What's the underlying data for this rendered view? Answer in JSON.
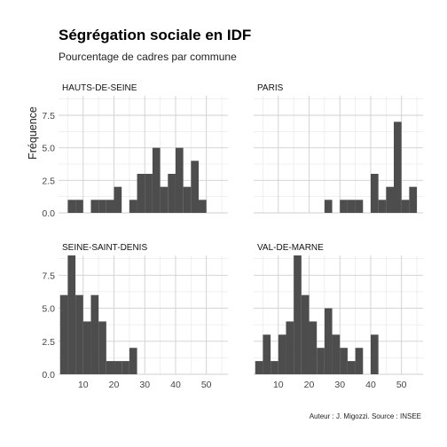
{
  "chart_data": {
    "type": "bar",
    "title": "Ségrégation sociale en IDF",
    "subtitle": "Pourcentage de cadres par commune",
    "ylabel": "Fréquence",
    "xlabel": "",
    "caption": "Auteur : J. Migozzi. Source : INSEE",
    "bin_width": 2.5,
    "xlim": [
      2,
      57
    ],
    "ylim": [
      0,
      9
    ],
    "x_ticks": [
      10,
      20,
      30,
      40,
      50
    ],
    "y_ticks": [
      0.0,
      2.5,
      5.0,
      7.5
    ],
    "y_tick_labels": [
      "0.0",
      "2.5",
      "5.0",
      "7.5"
    ],
    "grid": true,
    "panels": [
      {
        "name": "HAUTS-DE-SEINE",
        "bars": [
          {
            "x": 6.25,
            "count": 1
          },
          {
            "x": 8.75,
            "count": 1
          },
          {
            "x": 13.75,
            "count": 1
          },
          {
            "x": 16.25,
            "count": 1
          },
          {
            "x": 18.75,
            "count": 1
          },
          {
            "x": 21.25,
            "count": 2
          },
          {
            "x": 26.25,
            "count": 1
          },
          {
            "x": 28.75,
            "count": 3
          },
          {
            "x": 31.25,
            "count": 3
          },
          {
            "x": 33.75,
            "count": 5
          },
          {
            "x": 36.25,
            "count": 2
          },
          {
            "x": 38.75,
            "count": 3
          },
          {
            "x": 41.25,
            "count": 5
          },
          {
            "x": 43.75,
            "count": 2
          },
          {
            "x": 46.25,
            "count": 4
          },
          {
            "x": 48.75,
            "count": 1
          }
        ]
      },
      {
        "name": "PARIS",
        "bars": [
          {
            "x": 26.25,
            "count": 1
          },
          {
            "x": 31.25,
            "count": 1
          },
          {
            "x": 33.75,
            "count": 1
          },
          {
            "x": 36.25,
            "count": 1
          },
          {
            "x": 41.25,
            "count": 3
          },
          {
            "x": 43.75,
            "count": 1
          },
          {
            "x": 46.25,
            "count": 2
          },
          {
            "x": 48.75,
            "count": 7
          },
          {
            "x": 51.25,
            "count": 1
          },
          {
            "x": 53.75,
            "count": 2
          }
        ]
      },
      {
        "name": "SEINE-SAINT-DENIS",
        "bars": [
          {
            "x": 3.75,
            "count": 6
          },
          {
            "x": 6.25,
            "count": 9
          },
          {
            "x": 8.75,
            "count": 6
          },
          {
            "x": 11.25,
            "count": 4
          },
          {
            "x": 13.75,
            "count": 6
          },
          {
            "x": 16.25,
            "count": 4
          },
          {
            "x": 18.75,
            "count": 1
          },
          {
            "x": 21.25,
            "count": 1
          },
          {
            "x": 23.75,
            "count": 1
          },
          {
            "x": 26.25,
            "count": 2
          }
        ]
      },
      {
        "name": "VAL-DE-MARNE",
        "bars": [
          {
            "x": 3.75,
            "count": 1
          },
          {
            "x": 6.25,
            "count": 3
          },
          {
            "x": 8.75,
            "count": 1
          },
          {
            "x": 11.25,
            "count": 3
          },
          {
            "x": 13.75,
            "count": 4
          },
          {
            "x": 16.25,
            "count": 9
          },
          {
            "x": 18.75,
            "count": 6
          },
          {
            "x": 21.25,
            "count": 4
          },
          {
            "x": 23.75,
            "count": 2
          },
          {
            "x": 26.25,
            "count": 5
          },
          {
            "x": 28.75,
            "count": 3
          },
          {
            "x": 31.25,
            "count": 2
          },
          {
            "x": 33.75,
            "count": 1
          },
          {
            "x": 36.25,
            "count": 2
          },
          {
            "x": 41.25,
            "count": 3
          }
        ]
      }
    ]
  }
}
